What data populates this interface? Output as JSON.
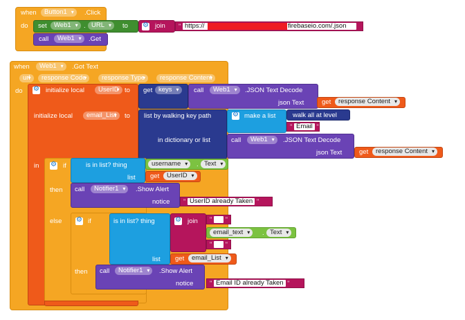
{
  "block1": {
    "when": "when",
    "component": "Button1",
    "event": ".Click",
    "do": "do",
    "set": "set",
    "set_component": "Web1",
    "property": "URL",
    "to": "to",
    "join": "join",
    "url_text_start": "https://",
    "url_text_end": "firebaseio.com/.json",
    "call": "call",
    "call_component": "Web1",
    "method": ".Get"
  },
  "block2": {
    "when": "when",
    "component": "Web1",
    "event": ".Got Text",
    "params": [
      "url",
      "response Code",
      "response Type",
      "response Content"
    ],
    "do": "do",
    "init_local": "initialize local",
    "var1": "UserID",
    "to": "to",
    "get": "get",
    "keys": "keys",
    "call": "call",
    "web1": "Web1",
    "json_decode": ".JSON Text Decode",
    "json_text": "json Text",
    "response_content": "response Content",
    "var2": "email_List",
    "list_by_walking": "list by walking key path",
    "make_a_list": "make a list",
    "walk_all": "walk all at level",
    "email_str": "Email",
    "in_dict_or_list": "in dictionary or list",
    "in": "in",
    "if": "if",
    "is_in_list": "is in list? thing",
    "username": "username",
    "text_prop": "Text",
    "list": "list",
    "userid_get": "UserID",
    "then": "then",
    "notifier": "Notifier1",
    "show_alert": ".Show Alert",
    "notice": "notice",
    "userid_taken": "UserID already Taken",
    "else": "else",
    "join": "join",
    "email_text": "email_text",
    "email_list_get": "email_List",
    "email_taken": "Email ID already Taken"
  },
  "colors": {
    "event": "#f5a623",
    "setter": "#3f8e2f",
    "component": "#6a43b5",
    "text": "#b5155c",
    "local_var": "#ef5a1a",
    "list": "#1d9fe0",
    "control": "#f5a623",
    "dict": "#2a3a8f"
  }
}
